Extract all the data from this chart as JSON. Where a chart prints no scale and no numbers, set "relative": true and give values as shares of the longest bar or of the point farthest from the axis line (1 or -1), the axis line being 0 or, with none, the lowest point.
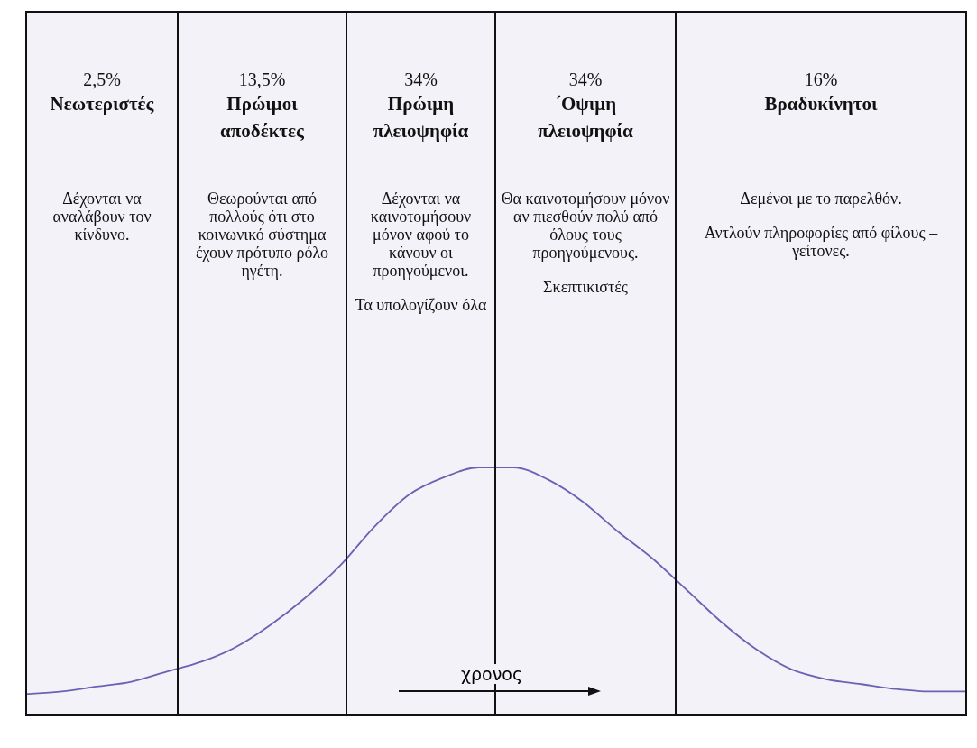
{
  "chart_data": {
    "type": "line",
    "relative": true,
    "xlabel": "χρονος",
    "categories": [
      null,
      null,
      null,
      null,
      null,
      null,
      null,
      null,
      null,
      null,
      null,
      null,
      null,
      null,
      null,
      null,
      null,
      null,
      null,
      null,
      null,
      null,
      null,
      null,
      null,
      null,
      null,
      null
    ],
    "series": [
      {
        "color": "#6a62b4",
        "values": [
          0.08,
          0.09,
          0.11,
          0.13,
          0.17,
          0.21,
          0.27,
          0.36,
          0.47,
          0.6,
          0.76,
          0.89,
          0.96,
          1,
          1,
          0.95,
          0.86,
          0.74,
          0.63,
          0.5,
          0.37,
          0.26,
          0.18,
          0.14,
          0.12,
          0.1,
          0.09,
          0.09
        ]
      }
    ],
    "annotations": [
      "2,5%\nΝεωτεριστές\n\nΔέχονται να αναλάβουν τον κίνδυνο.",
      "13,5%\nΠρώιμοι\nαποδέκτες\n\nΘεωρούνται από πολλούς ότι στο κοινωνικό σύστημα έχουν πρότυπο ρόλο ηγέτη.",
      "34%\nΠρώιμη\nπλειοψηφία\n\nΔέχονται να καινοτομήσουν μόνον αφού το κάνουν οι προηγούμενοι.\n\nΤα υπολογίζουν όλα",
      "34%\n΄Οψιμη\nπλειοψηφία\n\nΘα καινοτομήσουν μόνον αν πιεσθούν πολύ από όλους τους προηγούμενους.\n\nΣκεπτικιστές",
      "16%\nΒραδυκίνητοι\n\nΔεμένοι με το παρελθόν.\n\nΑντλούν πληροφορίες από φίλους – γείτονες."
    ]
  }
}
